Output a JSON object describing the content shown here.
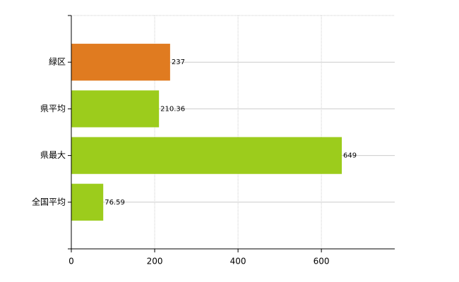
{
  "chart_data": {
    "type": "hbar",
    "categories": [
      "緑区",
      "県平均",
      "県最大",
      "全国平均"
    ],
    "values": [
      237,
      210.36,
      649,
      76.59
    ],
    "colors": [
      "#e07b20",
      "#9ccc1c",
      "#9ccc1c",
      "#9ccc1c"
    ],
    "xlim": [
      0,
      776
    ],
    "xticks": [
      0,
      200,
      400,
      600
    ],
    "grid": true
  }
}
